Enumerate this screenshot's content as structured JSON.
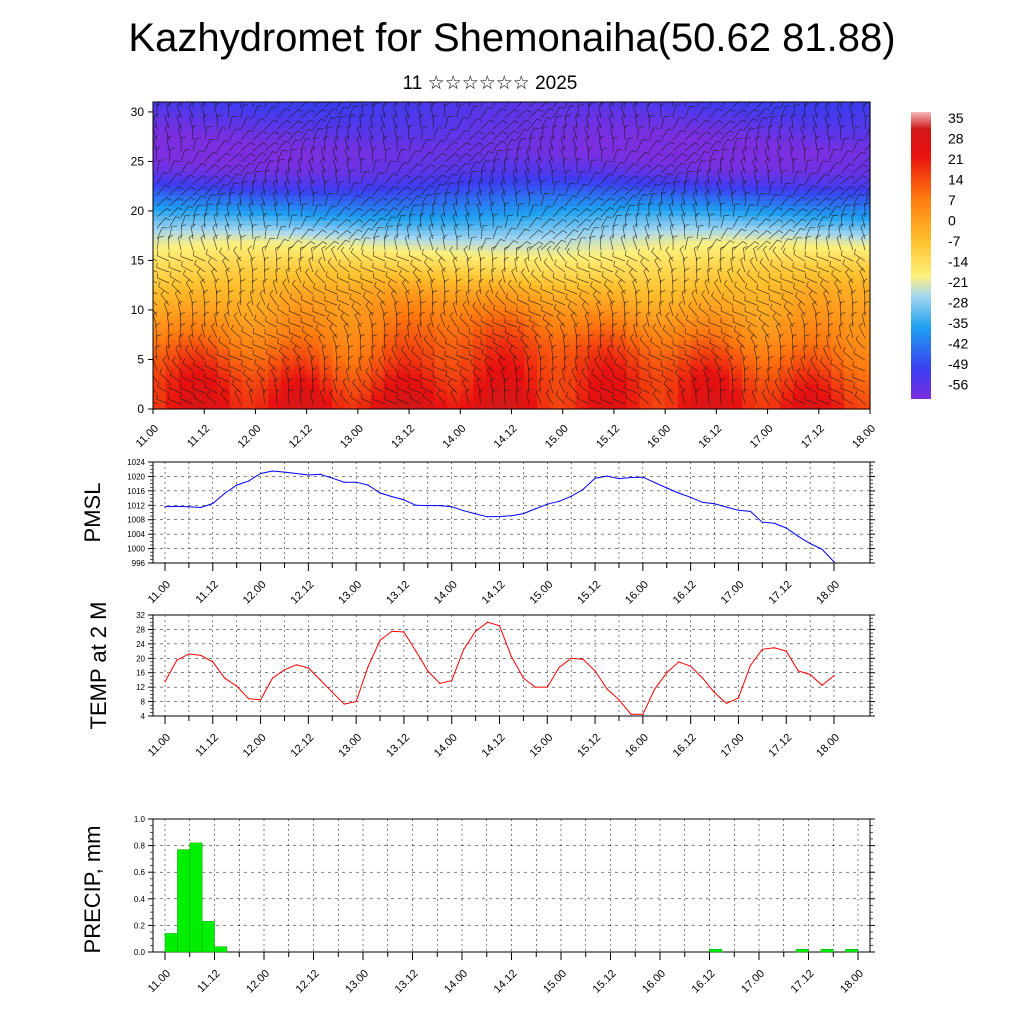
{
  "title": "Kazhydromet for Shemonaiha(50.62 81.88)",
  "subtitle": "11 ☆☆☆☆☆☆ 2025",
  "colors": {
    "pmsl_line": "#0000ff",
    "temp_line": "#ff0000",
    "precip_bar": "#00ee00",
    "axis": "#000000"
  },
  "chart_data": [
    {
      "type": "heatmap",
      "name": "upper-air-section",
      "x_tick_labels": [
        "11.00",
        "11.12",
        "12.00",
        "12.12",
        "13.00",
        "13.12",
        "14.00",
        "14.12",
        "15.00",
        "15.12",
        "16.00",
        "16.12",
        "17.00",
        "17.12",
        "18.00"
      ],
      "y_ticks": [
        0,
        5,
        10,
        15,
        20,
        25,
        30
      ],
      "ylim": [
        0,
        31
      ],
      "colorbar_labels": [
        "35",
        "28",
        "21",
        "14",
        "7",
        "0",
        "-7",
        "-14",
        "-21",
        "-28",
        "-35",
        "-42",
        "-49",
        "-56"
      ],
      "colorbar_range": [
        -60,
        38
      ],
      "level_profile": [
        [
          0,
          22
        ],
        [
          3,
          18
        ],
        [
          6,
          12
        ],
        [
          9,
          5
        ],
        [
          12,
          -3
        ],
        [
          14.5,
          -12
        ],
        [
          17,
          -22
        ],
        [
          19,
          -32
        ],
        [
          21,
          -42
        ],
        [
          22.5,
          -50
        ],
        [
          24,
          -56
        ],
        [
          26,
          -60
        ],
        [
          28,
          -57
        ],
        [
          31,
          -52
        ]
      ],
      "wind_barbs": true
    },
    {
      "type": "line",
      "name": "pmsl",
      "ylabel": "PMSL",
      "x_tick_labels": [
        "11.00",
        "11.12",
        "12.00",
        "12.12",
        "13.00",
        "13.12",
        "14.00",
        "14.12",
        "15.00",
        "15.12",
        "16.00",
        "16.12",
        "17.00",
        "17.12",
        "18.00"
      ],
      "y_ticks": [
        996,
        1000,
        1004,
        1008,
        1012,
        1016,
        1020,
        1024
      ],
      "ylim": [
        996,
        1024
      ],
      "x_hours": [
        0,
        3,
        6,
        9,
        12,
        15,
        18,
        21,
        24,
        27,
        30,
        33,
        36,
        39,
        42,
        45,
        48,
        51,
        54,
        57,
        60,
        63,
        66,
        69,
        72,
        75,
        78,
        81,
        84,
        87,
        90,
        93,
        96,
        99,
        102,
        105,
        108,
        111,
        114,
        117,
        120,
        123,
        126,
        129,
        132,
        135,
        138,
        141,
        144,
        147,
        150,
        153,
        156,
        159,
        162,
        165,
        168
      ],
      "values": [
        1011.6,
        1011.7,
        1011.6,
        1011.4,
        1012.5,
        1015.3,
        1017.6,
        1018.7,
        1020.8,
        1021.5,
        1021.2,
        1020.8,
        1020.4,
        1020.6,
        1019.5,
        1018.4,
        1018.4,
        1017.6,
        1015.4,
        1014.4,
        1013.5,
        1012.0,
        1011.9,
        1011.9,
        1011.6,
        1010.5,
        1009.6,
        1008.8,
        1008.9,
        1009.1,
        1009.7,
        1011.0,
        1012.3,
        1013.1,
        1014.5,
        1016.4,
        1019.5,
        1020.1,
        1019.4,
        1019.7,
        1019.8,
        1018.3,
        1016.8,
        1015.4,
        1014.2,
        1012.8,
        1012.4,
        1011.5,
        1010.6,
        1010.3,
        1007.3,
        1007.0,
        1005.7,
        1003.4,
        1001.4,
        999.8,
        996.3
      ]
    },
    {
      "type": "line",
      "name": "temp-2m",
      "ylabel": "TEMP at 2 M",
      "x_tick_labels": [
        "11.00",
        "11.12",
        "12.00",
        "12.12",
        "13.00",
        "13.12",
        "14.00",
        "14.12",
        "15.00",
        "15.12",
        "16.00",
        "16.12",
        "17.00",
        "17.12",
        "18.00"
      ],
      "y_ticks": [
        4,
        8,
        12,
        16,
        20,
        24,
        28,
        32
      ],
      "ylim": [
        4,
        32
      ],
      "x_hours": [
        0,
        3,
        6,
        9,
        12,
        15,
        18,
        21,
        24,
        27,
        30,
        33,
        36,
        39,
        42,
        45,
        48,
        51,
        54,
        57,
        60,
        63,
        66,
        69,
        72,
        75,
        78,
        81,
        84,
        87,
        90,
        93,
        96,
        99,
        102,
        105,
        108,
        111,
        114,
        117,
        120,
        123,
        126,
        129,
        132,
        135,
        138,
        141,
        144,
        147,
        150,
        153,
        156,
        159,
        162,
        165,
        168
      ],
      "values": [
        13.5,
        19.5,
        21.2,
        20.8,
        19.0,
        14.5,
        12.3,
        8.8,
        8.5,
        14.5,
        16.8,
        18.2,
        17.3,
        14.0,
        10.6,
        7.3,
        8.0,
        17.7,
        25.0,
        27.5,
        27.3,
        22.0,
        16.5,
        13.0,
        13.8,
        22.5,
        27.5,
        30.0,
        29.0,
        20.5,
        14.5,
        12.0,
        12.0,
        17.5,
        20.0,
        19.7,
        16.5,
        11.5,
        8.5,
        4.5,
        4.5,
        11.5,
        16.0,
        19.0,
        17.8,
        14.5,
        10.5,
        7.5,
        9.0,
        18.0,
        22.5,
        22.9,
        22.0,
        16.5,
        15.5,
        12.5,
        15.2
      ]
    },
    {
      "type": "bar",
      "name": "precip",
      "ylabel": "PRECIP, mm",
      "x_tick_labels": [
        "11.00",
        "11.12",
        "12.00",
        "12.12",
        "13.00",
        "13.12",
        "14.00",
        "14.12",
        "15.00",
        "15.12",
        "16.00",
        "16.12",
        "17.00",
        "17.12",
        "18.00"
      ],
      "y_tick_labels": [
        "0.0",
        "0.2",
        "0.4",
        "0.6",
        "0.8",
        "1.0"
      ],
      "ylim": [
        0,
        1
      ],
      "bar_hours": [
        3,
        6,
        9,
        12,
        15,
        135,
        156,
        162,
        168
      ],
      "values": [
        0.14,
        0.77,
        0.82,
        0.23,
        0.04,
        0.02,
        0.02,
        0.02,
        0.02
      ]
    }
  ]
}
